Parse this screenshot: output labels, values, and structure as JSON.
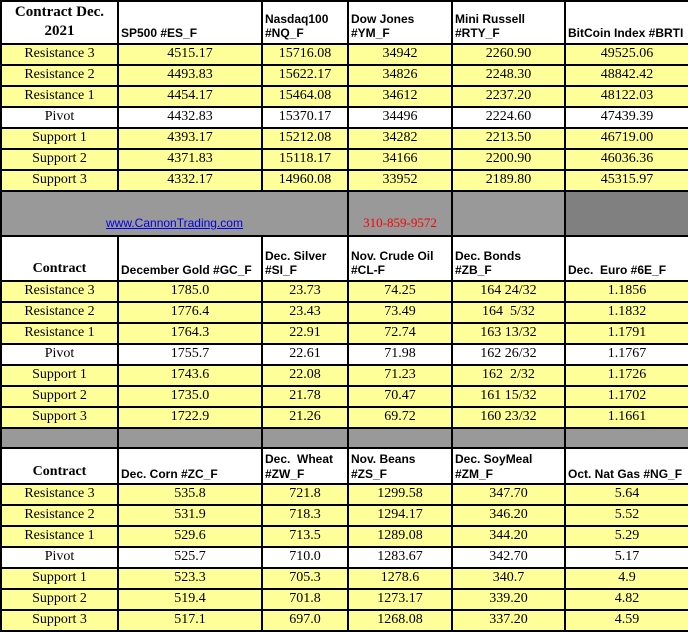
{
  "banner": {
    "website": "www.CannonTrading.com",
    "phone": "310-859-9572"
  },
  "colors": {
    "row_yellow": "#FFFF99",
    "separator_gray": "#999999",
    "separator_dark_gray": "#808080",
    "link_blue": "#0000EE",
    "phone_red": "#FF0000",
    "border_black": "#000000"
  },
  "sections": [
    {
      "name": "indices",
      "corner_label": "Contract Dec.\n2021",
      "columns": [
        "SP500 #ES_F",
        "Nasdaq100\n#NQ_F",
        "Dow Jones\n#YM_F",
        "Mini Russell\n#RTY_F",
        "BitCoin Index #BRTI"
      ],
      "rows": [
        {
          "label": "Resistance 3",
          "values": [
            "4515.17",
            "15716.08",
            "34942",
            "2260.90",
            "49525.06"
          ]
        },
        {
          "label": "Resistance 2",
          "values": [
            "4493.83",
            "15622.17",
            "34826",
            "2248.30",
            "48842.42"
          ]
        },
        {
          "label": "Resistance 1",
          "values": [
            "4454.17",
            "15464.08",
            "34612",
            "2237.20",
            "48122.03"
          ]
        },
        {
          "label": "Pivot",
          "values": [
            "4432.83",
            "15370.17",
            "34496",
            "2224.60",
            "47439.39"
          ]
        },
        {
          "label": "Support 1",
          "values": [
            "4393.17",
            "15212.08",
            "34282",
            "2213.50",
            "46719.00"
          ]
        },
        {
          "label": "Support 2",
          "values": [
            "4371.83",
            "15118.17",
            "34166",
            "2200.90",
            "46036.36"
          ]
        },
        {
          "label": "Support 3",
          "values": [
            "4332.17",
            "14960.08",
            "33952",
            "2189.80",
            "45315.97"
          ]
        }
      ]
    },
    {
      "name": "metals-energy-financials",
      "corner_label": "Contract",
      "columns": [
        "December Gold #GC_F",
        "Dec. Silver\n#SI_F",
        "Nov. Crude Oil\n#CL-F",
        "Dec. Bonds  #ZB_F",
        "Dec.  Euro #6E_F"
      ],
      "rows": [
        {
          "label": "Resistance 3",
          "values": [
            "1785.0",
            "23.73",
            "74.25",
            "164 24/32",
            "1.1856"
          ]
        },
        {
          "label": "Resistance 2",
          "values": [
            "1776.4",
            "23.43",
            "73.49",
            "164  5/32",
            "1.1832"
          ]
        },
        {
          "label": "Resistance 1",
          "values": [
            "1764.3",
            "22.91",
            "72.74",
            "163 13/32",
            "1.1791"
          ]
        },
        {
          "label": "Pivot",
          "values": [
            "1755.7",
            "22.61",
            "71.98",
            "162 26/32",
            "1.1767"
          ]
        },
        {
          "label": "Support 1",
          "values": [
            "1743.6",
            "22.08",
            "71.23",
            "162  2/32",
            "1.1726"
          ]
        },
        {
          "label": "Support 2",
          "values": [
            "1735.0",
            "21.78",
            "70.47",
            "161 15/32",
            "1.1702"
          ]
        },
        {
          "label": "Support 3",
          "values": [
            "1722.9",
            "21.26",
            "69.72",
            "160 23/32",
            "1.1661"
          ]
        }
      ]
    },
    {
      "name": "grains-natgas",
      "corner_label": "Contract",
      "columns": [
        "Dec. Corn #ZC_F",
        "Dec.  Wheat\n#ZW_F",
        "Nov. Beans #ZS_F",
        "Dec. SoyMeal\n#ZM_F",
        "Oct. Nat Gas #NG_F"
      ],
      "rows": [
        {
          "label": "Resistance 3",
          "values": [
            "535.8",
            "721.8",
            "1299.58",
            "347.70",
            "5.64"
          ]
        },
        {
          "label": "Resistance 2",
          "values": [
            "531.9",
            "718.3",
            "1294.17",
            "346.20",
            "5.52"
          ]
        },
        {
          "label": "Resistance 1",
          "values": [
            "529.6",
            "713.5",
            "1289.08",
            "344.20",
            "5.29"
          ]
        },
        {
          "label": "Pivot",
          "values": [
            "525.7",
            "710.0",
            "1283.67",
            "342.70",
            "5.17"
          ]
        },
        {
          "label": "Support 1",
          "values": [
            "523.3",
            "705.3",
            "1278.6",
            "340.7",
            "4.9"
          ]
        },
        {
          "label": "Support 2",
          "values": [
            "519.4",
            "701.8",
            "1273.17",
            "339.20",
            "4.82"
          ]
        },
        {
          "label": "Support 3",
          "values": [
            "517.1",
            "697.0",
            "1268.08",
            "337.20",
            "4.59"
          ]
        }
      ]
    }
  ]
}
